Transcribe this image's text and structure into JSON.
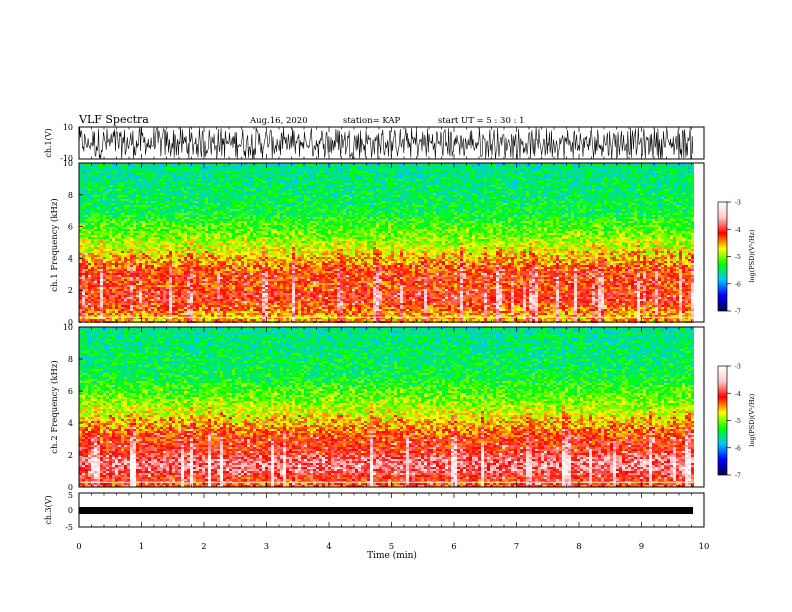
{
  "header": {
    "title": "VLF Spectra",
    "date": "Aug.16, 2020",
    "station": "station= KAP",
    "start": "start  UT =   5  : 30 : 1"
  },
  "chart_data": [
    {
      "type": "line",
      "name": "waveform-ch1",
      "ylabel": "ch.1(V)",
      "ylim": [
        -10,
        10
      ],
      "yticks": [
        "10",
        "-10"
      ],
      "xlim": [
        0,
        10
      ],
      "note": "dense black waveform filling the panel, x from 0 to ~9.8 min",
      "color": "#000000"
    },
    {
      "type": "heatmap",
      "name": "spectrogram-ch1",
      "ylabel": "ch.1  Frequency (kHz)",
      "ylim": [
        0,
        10
      ],
      "yticks": [
        "0",
        "2",
        "4",
        "6",
        "8",
        "10"
      ],
      "xlim": [
        0,
        10
      ],
      "colorbar": {
        "label": "log(PSD)(V²/Hz)",
        "range": [
          -7,
          -3
        ],
        "ticks": [
          "-3",
          "-4",
          "-5",
          "-6",
          "-7"
        ],
        "colors": [
          "#000050",
          "#0000ff",
          "#00c8ff",
          "#00ff00",
          "#ffff00",
          "#ff0000",
          "#ffc8c8",
          "#ffffff"
        ]
      },
      "profile_khz": [
        [
          0.3,
          -4.6
        ],
        [
          0.8,
          -4.4
        ],
        [
          1.2,
          -4.2
        ],
        [
          1.6,
          -4.1
        ],
        [
          2.2,
          -4.3
        ],
        [
          3.0,
          -4.2
        ],
        [
          4.0,
          -4.6
        ],
        [
          5.0,
          -4.9
        ],
        [
          7.0,
          -5.4
        ],
        [
          10.0,
          -5.6
        ]
      ]
    },
    {
      "type": "heatmap",
      "name": "spectrogram-ch2",
      "ylabel": "ch.2  Frequency (kHz)",
      "ylim": [
        0,
        10
      ],
      "yticks": [
        "0",
        "2",
        "4",
        "6",
        "8",
        "10"
      ],
      "xlim": [
        0,
        10
      ],
      "colorbar": {
        "label": "log(PSD)(V²/Hz)",
        "range": [
          -7,
          -3
        ],
        "ticks": [
          "-3",
          "-4",
          "-5",
          "-6",
          "-7"
        ],
        "colors": [
          "#000050",
          "#0000ff",
          "#00c8ff",
          "#00ff00",
          "#ffff00",
          "#ff0000",
          "#ffc8c8",
          "#ffffff"
        ]
      },
      "profile_khz": [
        [
          0.3,
          -4.3
        ],
        [
          0.8,
          -4.0
        ],
        [
          1.2,
          -3.8
        ],
        [
          1.6,
          -3.8
        ],
        [
          2.2,
          -4.1
        ],
        [
          3.0,
          -4.2
        ],
        [
          4.0,
          -4.6
        ],
        [
          5.0,
          -4.9
        ],
        [
          7.0,
          -5.4
        ],
        [
          10.0,
          -5.6
        ]
      ]
    },
    {
      "type": "line",
      "name": "waveform-ch3",
      "ylabel": "ch.3(V)",
      "ylim": [
        -5,
        5
      ],
      "yticks": [
        "5",
        "0",
        "-5"
      ],
      "xlim": [
        0,
        10
      ],
      "level": -1,
      "xlabel": "Time (min)",
      "xticks": [
        "0",
        "1",
        "2",
        "3",
        "4",
        "5",
        "6",
        "7",
        "8",
        "9",
        "10"
      ],
      "color": "#000000"
    }
  ]
}
